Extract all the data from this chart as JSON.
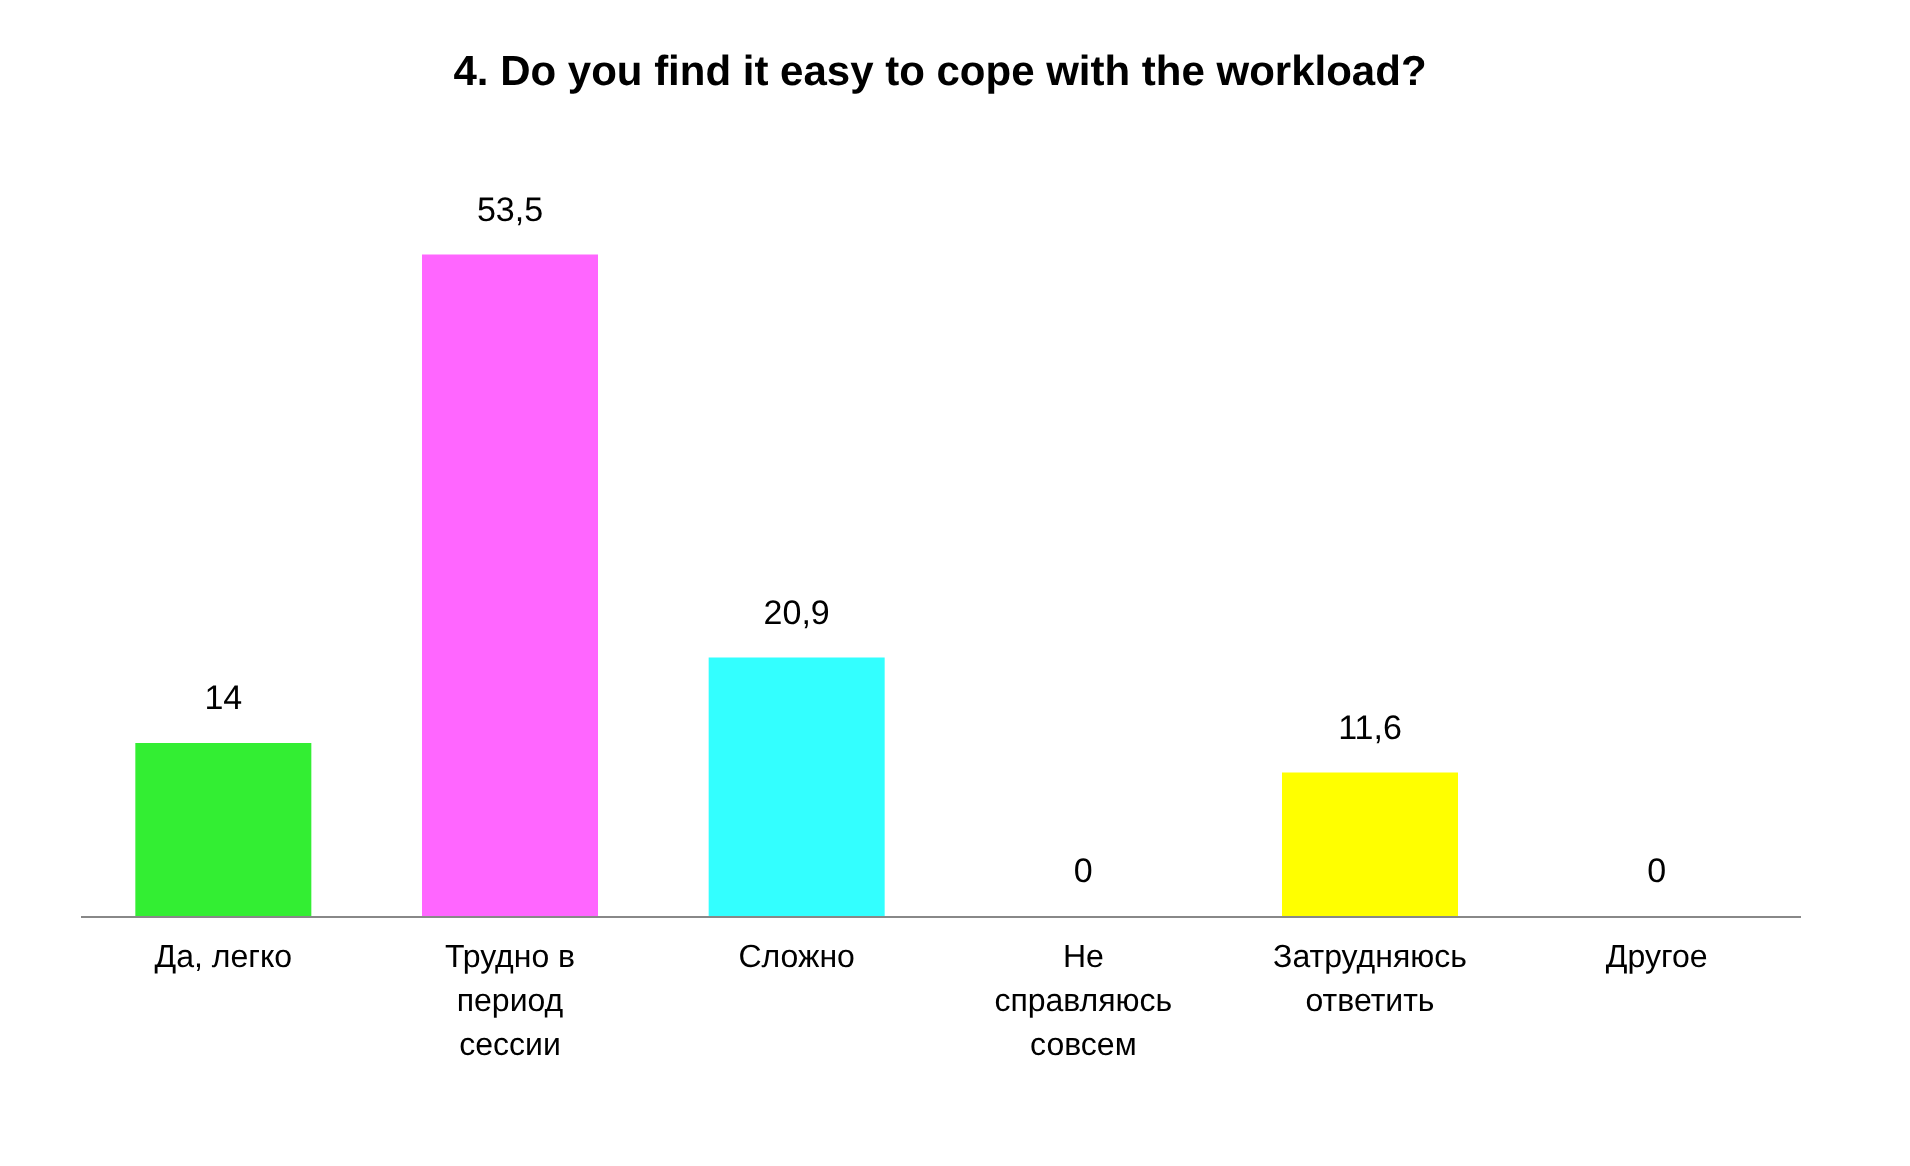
{
  "chart_data": {
    "type": "bar",
    "title": "4. Do you find it easy to cope with the workload?",
    "categories": [
      "Да, легко",
      "Трудно в период сессии",
      "Сложно",
      "Не справляюсь совсем",
      "Затрудняюсь ответить",
      "Другое"
    ],
    "values": [
      14,
      53.5,
      20.9,
      0,
      11.6,
      0
    ],
    "colors": [
      "#33ee33",
      "#ff66ff",
      "#33ffff",
      "#ffff00",
      "#ffff00",
      "#ffff00"
    ],
    "value_labels": [
      "14",
      "53,5",
      "20,9",
      "0",
      "11,6",
      "0"
    ]
  }
}
